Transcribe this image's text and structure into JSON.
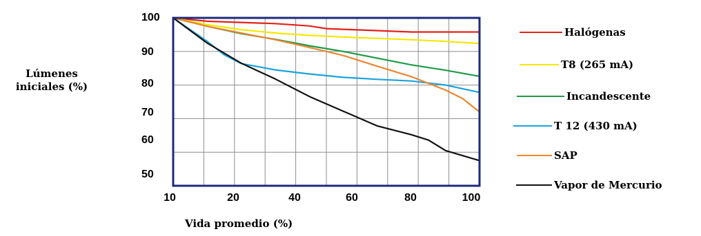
{
  "chart_data": {
    "type": "line",
    "title": "",
    "xlabel": "Vida promedio  (%)",
    "ylabel": [
      "Lúmenes",
      "iniciales (%)"
    ],
    "x_ticks": [
      "10",
      "20",
      "40",
      "60",
      "80",
      "100"
    ],
    "y_ticks": [
      "100",
      "90",
      "80",
      "70",
      "60",
      "50"
    ],
    "xlim": [
      10,
      100
    ],
    "ylim": [
      50,
      100
    ],
    "grid": true,
    "legend_position": "right",
    "series": [
      {
        "name": "Halógenas",
        "color": "#e32119",
        "x": [
          10,
          20,
          40,
          50,
          55,
          60,
          70,
          80,
          90,
          100
        ],
        "y": [
          100,
          99,
          98.3,
          97.6,
          96.8,
          96.6,
          96.2,
          95.8,
          95.8,
          95.8
        ]
      },
      {
        "name": "T8 (265 mA)",
        "color": "#f5e800",
        "x": [
          10,
          20,
          30,
          40,
          50,
          60,
          70,
          80,
          90,
          100
        ],
        "y": [
          100,
          98,
          96.5,
          95.5,
          94.8,
          94.3,
          93.9,
          93.5,
          93.0,
          92.4
        ]
      },
      {
        "name": "Incandescente",
        "color": "#1f9a47",
        "x": [
          10,
          20,
          30,
          40,
          50,
          60,
          70,
          80,
          90,
          100
        ],
        "y": [
          100,
          97.5,
          95.3,
          93.6,
          91.7,
          90,
          88,
          86,
          84.4,
          82.6
        ]
      },
      {
        "name": "T 12 (430 mA)",
        "color": "#1aa3e0",
        "x": [
          10,
          15,
          20,
          25,
          30,
          40,
          50,
          60,
          70,
          80,
          90,
          100
        ],
        "y": [
          100,
          96.5,
          93,
          89,
          86.4,
          84.5,
          83.3,
          82.3,
          81.7,
          81.2,
          80,
          77.8
        ]
      },
      {
        "name": "SAP",
        "color": "#ec8630",
        "x": [
          10,
          20,
          30,
          40,
          50,
          60,
          70,
          80,
          90,
          95,
          100
        ],
        "y": [
          100,
          97.5,
          95.5,
          93.5,
          91.2,
          88.8,
          85.6,
          82.5,
          78.5,
          76,
          72
        ]
      },
      {
        "name": "Vapor de Mercurio",
        "color": "#111111",
        "x": [
          10,
          20,
          30,
          40,
          50,
          60,
          70,
          80,
          85,
          90,
          100
        ],
        "y": [
          100,
          92.5,
          86.5,
          81.8,
          76.6,
          72.2,
          67.8,
          65.2,
          63.6,
          60.5,
          57.5
        ]
      }
    ]
  }
}
